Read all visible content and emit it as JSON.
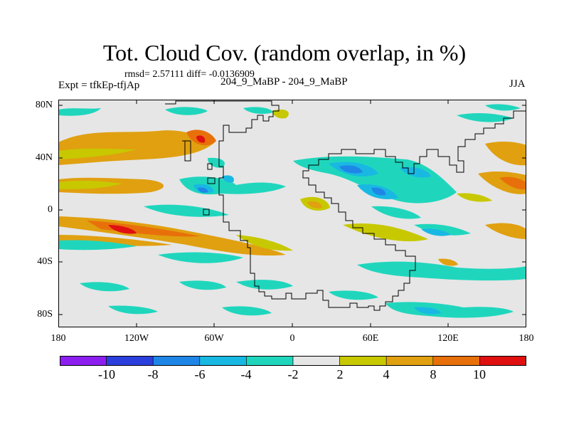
{
  "title": "Tot. Cloud Cov. (random overlap, in %)",
  "stats": "rmsd= 2.57111 diff= -0.0136909",
  "experiment": "Expt = tfkEp-tfjAp",
  "period": "204_9_MaBP - 204_9_MaBP",
  "season": "JJA",
  "y_ticks": [
    "80N",
    "40N",
    "0",
    "40S",
    "80S"
  ],
  "x_ticks": [
    "180",
    "120W",
    "60W",
    "0",
    "60E",
    "120E",
    "180"
  ],
  "colorbar": {
    "colors": [
      "#8c1ff0",
      "#2b3fdc",
      "#1e86e6",
      "#19b8e3",
      "#1fd6bd",
      "#e6e6e6",
      "#c8c800",
      "#e0a010",
      "#e8700a",
      "#e01010"
    ],
    "labels": [
      "-10",
      "-8",
      "-6",
      "-4",
      "-2",
      "2",
      "4",
      "8",
      "10"
    ]
  },
  "colors": {
    "background": "#e6e6e6",
    "coastline": "#000000"
  }
}
